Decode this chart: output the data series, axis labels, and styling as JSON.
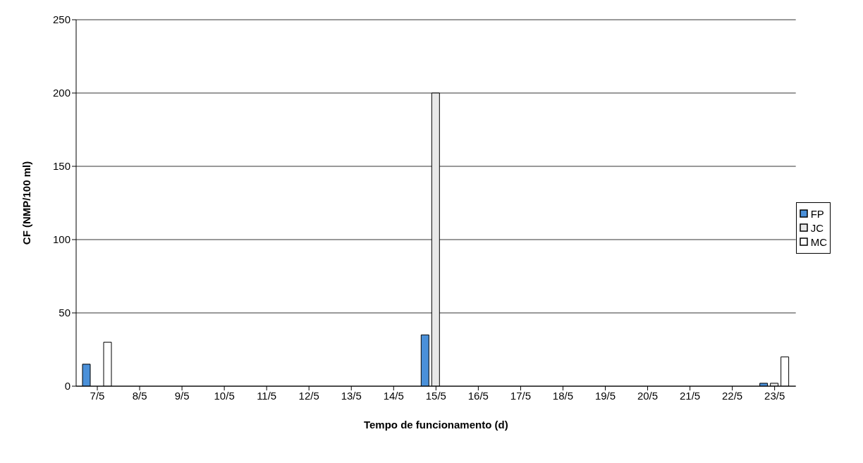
{
  "chart_data": {
    "type": "bar",
    "xlabel": "Tempo de funcionamento (d)",
    "ylabel": "CF (NMP/100 ml)",
    "categories": [
      "7/5",
      "8/5",
      "9/5",
      "10/5",
      "11/5",
      "12/5",
      "13/5",
      "14/5",
      "15/5",
      "16/5",
      "17/5",
      "18/5",
      "19/5",
      "20/5",
      "21/5",
      "22/5",
      "23/5"
    ],
    "series": [
      {
        "name": "FP",
        "color": "#4a90d9",
        "values": [
          15,
          null,
          null,
          null,
          null,
          null,
          null,
          null,
          35,
          null,
          null,
          null,
          null,
          null,
          null,
          null,
          2
        ]
      },
      {
        "name": "JC",
        "color": "#e8e8e8",
        "values": [
          null,
          null,
          null,
          null,
          null,
          null,
          null,
          null,
          200,
          null,
          null,
          null,
          null,
          null,
          null,
          null,
          2
        ]
      },
      {
        "name": "MC",
        "color": "#ffffff",
        "values": [
          30,
          null,
          null,
          null,
          null,
          null,
          null,
          null,
          null,
          null,
          null,
          null,
          null,
          null,
          null,
          null,
          20
        ]
      }
    ],
    "ylim": [
      0,
      250
    ],
    "yticks": [
      0,
      50,
      100,
      150,
      200,
      250
    ],
    "grid": "y",
    "legend": "right"
  }
}
